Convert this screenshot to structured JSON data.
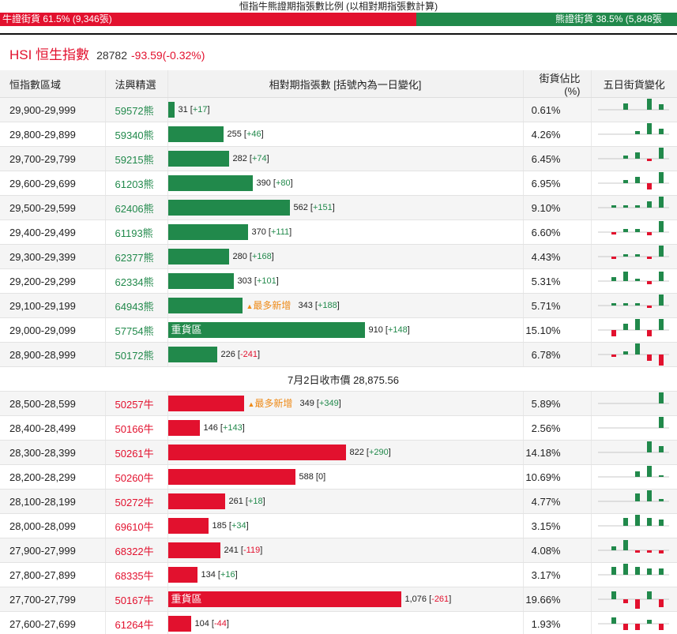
{
  "top": {
    "title": "恒指牛熊證期指張數比例 (以相對期指張數計算)",
    "bull_label": "牛證街貨 61.5% (9,346張)",
    "bear_label": "熊證街貨 38.5% (5,848張",
    "bull_ratio": 0.615,
    "colors": {
      "bull": "#e2112e",
      "bear": "#21894b",
      "newest": "#ee8a17"
    }
  },
  "index": {
    "name": "HSI 恒生指數",
    "price": "28782",
    "change": "-93.59(-0.32%)"
  },
  "columns": {
    "range": "恒指數區域",
    "code": "法興精選",
    "contracts": "相對期指張數 [括號內為一日變化]",
    "share": "街貨佔比(%)",
    "trend": "五日街貨變化"
  },
  "mid_label": "7月2日收市價 28,875.56",
  "bear_rows": [
    {
      "range": "29,900-29,999",
      "code": "59572熊",
      "value": 31,
      "value_text": "31",
      "delta": "+17",
      "dir": "up",
      "share": "0.61%",
      "tag": "",
      "newest": false,
      "trend": [
        0,
        0,
        0.3,
        0,
        0.55,
        0.25
      ]
    },
    {
      "range": "29,800-29,899",
      "code": "59340熊",
      "value": 255,
      "value_text": "255",
      "delta": "+46",
      "dir": "up",
      "share": "4.26%",
      "tag": "",
      "newest": false,
      "trend": [
        0,
        0,
        0,
        0.15,
        0.55,
        0.25
      ]
    },
    {
      "range": "29,700-29,799",
      "code": "59215熊",
      "value": 282,
      "value_text": "282",
      "delta": "+74",
      "dir": "up",
      "share": "6.45%",
      "tag": "",
      "newest": false,
      "trend": [
        0,
        0,
        0.15,
        0.3,
        -0.1,
        0.55
      ]
    },
    {
      "range": "29,600-29,699",
      "code": "61203熊",
      "value": 390,
      "value_text": "390",
      "delta": "+80",
      "dir": "up",
      "share": "6.95%",
      "tag": "",
      "newest": false,
      "trend": [
        0,
        0,
        0.15,
        0.3,
        -0.3,
        0.55
      ]
    },
    {
      "range": "29,500-29,599",
      "code": "62406熊",
      "value": 562,
      "value_text": "562",
      "delta": "+151",
      "dir": "up",
      "share": "9.10%",
      "tag": "",
      "newest": false,
      "trend": [
        0,
        0.1,
        0.1,
        0.1,
        0.3,
        0.55
      ]
    },
    {
      "range": "29,400-29,499",
      "code": "61193熊",
      "value": 370,
      "value_text": "370",
      "delta": "+111",
      "dir": "up",
      "share": "6.60%",
      "tag": "",
      "newest": false,
      "trend": [
        0,
        -0.1,
        0.15,
        0.15,
        -0.15,
        0.55
      ]
    },
    {
      "range": "29,300-29,399",
      "code": "62377熊",
      "value": 280,
      "value_text": "280",
      "delta": "+168",
      "dir": "up",
      "share": "4.43%",
      "tag": "",
      "newest": false,
      "trend": [
        0,
        -0.1,
        0.1,
        0.1,
        -0.1,
        0.55
      ]
    },
    {
      "range": "29,200-29,299",
      "code": "62334熊",
      "value": 303,
      "value_text": "303",
      "delta": "+101",
      "dir": "up",
      "share": "5.31%",
      "tag": "",
      "newest": false,
      "trend": [
        0,
        0.2,
        0.45,
        0.1,
        -0.15,
        0.45
      ]
    },
    {
      "range": "29,100-29,199",
      "code": "64943熊",
      "value": 343,
      "value_text": "343",
      "delta": "+188",
      "dir": "up",
      "share": "5.71%",
      "tag": "",
      "newest": true,
      "trend": [
        0,
        0.1,
        0.1,
        0.1,
        -0.1,
        0.55
      ]
    },
    {
      "range": "29,000-29,099",
      "code": "57754熊",
      "value": 910,
      "value_text": "910",
      "delta": "+148",
      "dir": "up",
      "share": "15.10%",
      "tag": "重貨區",
      "newest": false,
      "trend": [
        0,
        -0.3,
        0.3,
        0.55,
        -0.3,
        0.55
      ]
    },
    {
      "range": "28,900-28,999",
      "code": "50172熊",
      "value": 226,
      "value_text": "226",
      "delta": "-241",
      "dir": "dn",
      "share": "6.78%",
      "tag": "",
      "newest": false,
      "trend": [
        0,
        -0.1,
        0.15,
        0.55,
        -0.3,
        -0.55
      ]
    }
  ],
  "bull_rows": [
    {
      "range": "28,500-28,599",
      "code": "50257牛",
      "value": 349,
      "value_text": "349",
      "delta": "+349",
      "dir": "up",
      "share": "5.89%",
      "tag": "",
      "newest": true,
      "trend": [
        0,
        0,
        0,
        0,
        0,
        0.55
      ]
    },
    {
      "range": "28,400-28,499",
      "code": "50166牛",
      "value": 146,
      "value_text": "146",
      "delta": "+143",
      "dir": "up",
      "share": "2.56%",
      "tag": "",
      "newest": false,
      "trend": [
        0,
        0,
        0,
        0,
        0,
        0.55
      ]
    },
    {
      "range": "28,300-28,399",
      "code": "50261牛",
      "value": 822,
      "value_text": "822",
      "delta": "+290",
      "dir": "up",
      "share": "14.18%",
      "tag": "",
      "newest": false,
      "trend": [
        0,
        0,
        0,
        0,
        0.55,
        0.3
      ]
    },
    {
      "range": "28,200-28,299",
      "code": "50260牛",
      "value": 588,
      "value_text": "588",
      "delta": "0",
      "dir": "zero",
      "share": "10.69%",
      "tag": "",
      "newest": false,
      "trend": [
        0,
        0,
        0,
        0.25,
        0.55,
        0.05
      ]
    },
    {
      "range": "28,100-28,199",
      "code": "50272牛",
      "value": 261,
      "value_text": "261",
      "delta": "+18",
      "dir": "up",
      "share": "4.77%",
      "tag": "",
      "newest": false,
      "trend": [
        0,
        0,
        0,
        0.4,
        0.55,
        0.1
      ]
    },
    {
      "range": "28,000-28,099",
      "code": "69610牛",
      "value": 185,
      "value_text": "185",
      "delta": "+34",
      "dir": "up",
      "share": "3.15%",
      "tag": "",
      "newest": false,
      "trend": [
        0,
        0,
        0.4,
        0.55,
        0.4,
        0.3
      ]
    },
    {
      "range": "27,900-27,999",
      "code": "68322牛",
      "value": 241,
      "value_text": "241",
      "delta": "-119",
      "dir": "dn",
      "share": "4.08%",
      "tag": "",
      "newest": false,
      "trend": [
        0,
        0.2,
        0.5,
        -0.1,
        -0.1,
        -0.15
      ]
    },
    {
      "range": "27,800-27,899",
      "code": "68335牛",
      "value": 134,
      "value_text": "134",
      "delta": "+16",
      "dir": "up",
      "share": "3.17%",
      "tag": "",
      "newest": false,
      "trend": [
        0,
        0.4,
        0.55,
        0.4,
        0.3,
        0.3
      ]
    },
    {
      "range": "27,700-27,799",
      "code": "50167牛",
      "value": 1076,
      "value_text": "1,076",
      "delta": "-261",
      "dir": "dn",
      "share": "19.66%",
      "tag": "重貨區",
      "newest": false,
      "trend": [
        0,
        0.4,
        -0.2,
        -0.45,
        0.4,
        -0.4
      ]
    },
    {
      "range": "27,600-27,699",
      "code": "61264牛",
      "value": 104,
      "value_text": "104",
      "delta": "-44",
      "dir": "dn",
      "share": "1.93%",
      "tag": "",
      "newest": false,
      "trend": [
        0,
        0.3,
        -0.3,
        -0.3,
        0.2,
        -0.3
      ]
    }
  ],
  "newest_label": "最多新增"
}
